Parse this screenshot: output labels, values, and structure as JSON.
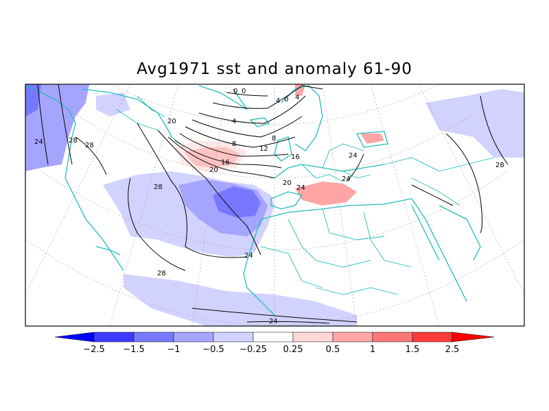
{
  "title": "Avg1971 sst and anomaly 61-90",
  "colors": {
    "neg_strong": "#0000ff",
    "neg_4": "#3c3cff",
    "neg_3": "#7878ff",
    "neg_2": "#a5a5ff",
    "neg_1": "#d2d2ff",
    "neutral": "#ffffff",
    "pos_1": "#ffd7d7",
    "pos_2": "#ffa5a5",
    "pos_3": "#ff7878",
    "pos_4": "#ff3c3c",
    "pos_strong": "#ff0000",
    "coast": "#22bbbb",
    "contour": "#000000",
    "grid": "#888888"
  },
  "colorbar": {
    "labels": [
      "-2.5",
      "-1.5",
      "-1",
      "-0.5",
      "-0.25",
      "0.25",
      "0.5",
      "1",
      "1.5",
      "2.5"
    ]
  },
  "contour_labels": [
    "24",
    "28",
    "28",
    "28",
    "20",
    "20",
    "16",
    "12",
    "8",
    "8",
    "4",
    "4",
    "0",
    "0",
    "16",
    "20",
    "24",
    "24",
    "24",
    "24",
    "28",
    "28",
    "24",
    "4",
    "0"
  ]
}
